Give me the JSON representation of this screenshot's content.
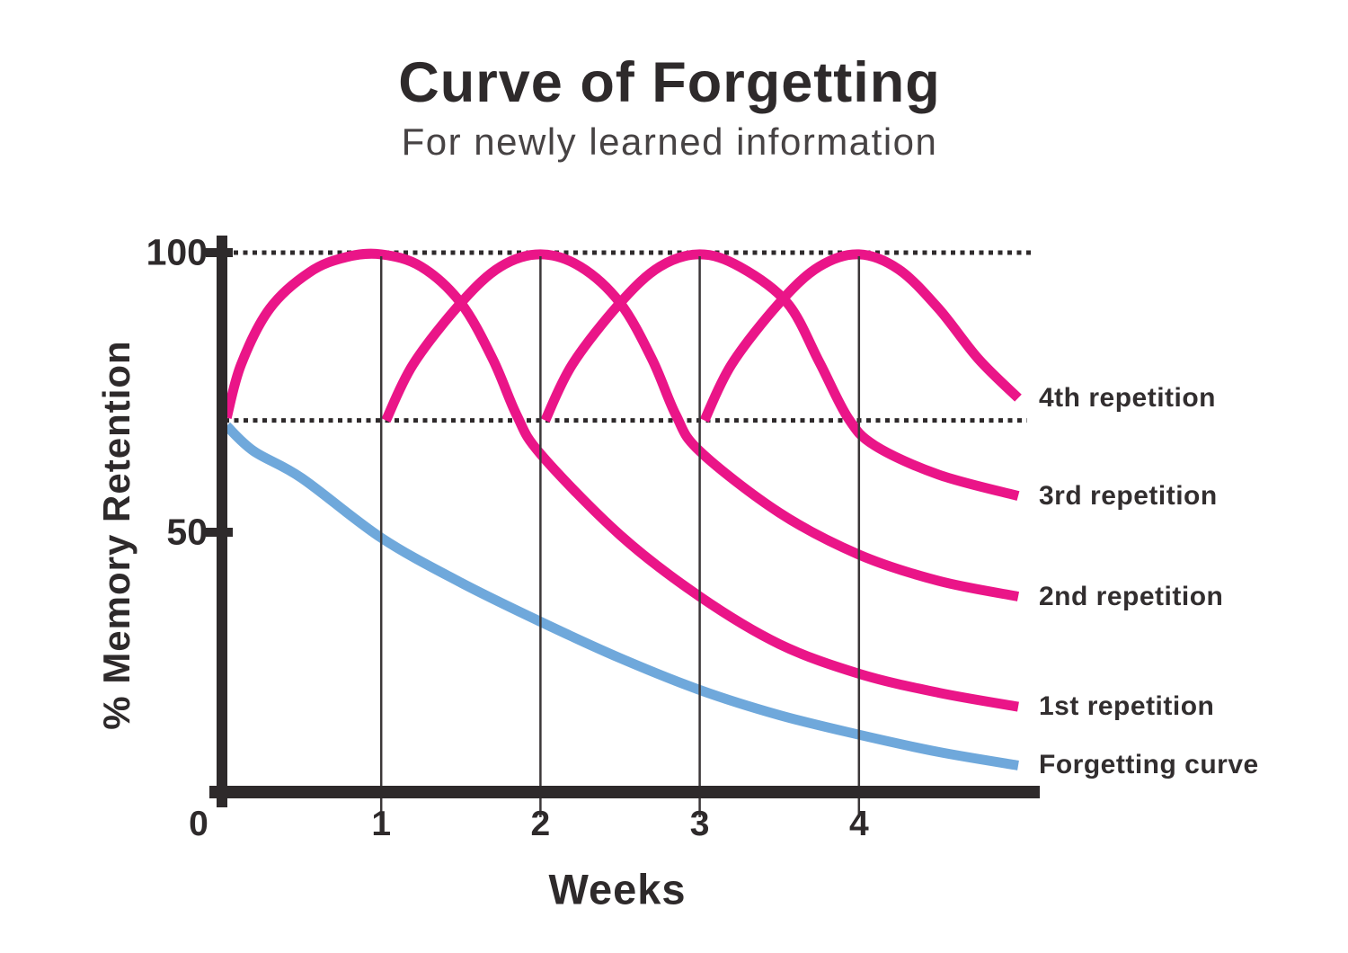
{
  "title": "Curve of Forgetting",
  "subtitle": "For newly learned information",
  "colors": {
    "accent_pink": "#ea1588",
    "accent_blue": "#6fa8db",
    "axis_dark": "#2e2a2b",
    "gridline": "#3b3738",
    "label_text": "#322e2f"
  },
  "chart_data": {
    "type": "line",
    "title": "Curve of Forgetting",
    "subtitle": "For newly learned information",
    "xlabel": "Weeks",
    "ylabel": "% Memory Retention",
    "xlim": [
      0,
      5
    ],
    "ylim": [
      0,
      100
    ],
    "x_ticks": [
      0,
      1,
      2,
      3,
      4
    ],
    "y_ticks": [
      100,
      50
    ],
    "grid": "vertical-at-week-marks",
    "dotted_reference_lines_pct": [
      100,
      70
    ],
    "legend_position": "right-of-curve-ends",
    "series": [
      {
        "name": "Forgetting curve",
        "color": "#6fa8db",
        "end_value_pct": 8.3,
        "points": [
          [
            0.03,
            69
          ],
          [
            0.2,
            64.5
          ],
          [
            0.5,
            59.7
          ],
          [
            1,
            49
          ],
          [
            1.5,
            41
          ],
          [
            2,
            34
          ],
          [
            2.5,
            27.5
          ],
          [
            3,
            21.8
          ],
          [
            3.5,
            17.3
          ],
          [
            4,
            13.8
          ],
          [
            4.5,
            10.7
          ],
          [
            5,
            8.3
          ]
        ]
      },
      {
        "name": "1st repetition",
        "color": "#ea1588",
        "end_value_pct": 18.8,
        "points": [
          [
            0.03,
            70.5
          ],
          [
            0.12,
            80
          ],
          [
            0.3,
            90
          ],
          [
            0.55,
            96.5
          ],
          [
            0.78,
            99.2
          ],
          [
            1,
            99.7
          ],
          [
            1.25,
            97.5
          ],
          [
            1.5,
            91
          ],
          [
            1.7,
            81
          ],
          [
            1.85,
            71
          ],
          [
            2,
            64
          ],
          [
            2.5,
            49.5
          ],
          [
            3,
            38.5
          ],
          [
            3.5,
            30
          ],
          [
            4,
            24.7
          ],
          [
            4.5,
            21.3
          ],
          [
            5,
            18.8
          ]
        ]
      },
      {
        "name": "2nd repetition",
        "color": "#ea1588",
        "end_value_pct": 38.5,
        "points": [
          [
            1.03,
            70
          ],
          [
            1.2,
            80
          ],
          [
            1.5,
            91
          ],
          [
            1.75,
            97.5
          ],
          [
            2,
            99.7
          ],
          [
            2.25,
            97.5
          ],
          [
            2.5,
            91
          ],
          [
            2.7,
            81
          ],
          [
            2.85,
            71
          ],
          [
            3,
            64.5
          ],
          [
            3.5,
            53.5
          ],
          [
            4,
            46
          ],
          [
            4.5,
            41.3
          ],
          [
            5,
            38.5
          ]
        ]
      },
      {
        "name": "3rd repetition",
        "color": "#ea1588",
        "end_value_pct": 56.5,
        "points": [
          [
            2.03,
            70
          ],
          [
            2.2,
            80
          ],
          [
            2.5,
            91
          ],
          [
            2.75,
            97.5
          ],
          [
            3,
            99.7
          ],
          [
            3.25,
            97.5
          ],
          [
            3.55,
            91
          ],
          [
            3.75,
            80.5
          ],
          [
            3.93,
            70.5
          ],
          [
            4.1,
            65.5
          ],
          [
            4.5,
            60.3
          ],
          [
            5,
            56.5
          ]
        ]
      },
      {
        "name": "4th repetition",
        "color": "#ea1588",
        "end_value_pct": 74,
        "points": [
          [
            3.03,
            70
          ],
          [
            3.2,
            80
          ],
          [
            3.5,
            91
          ],
          [
            3.75,
            97.5
          ],
          [
            4,
            99.7
          ],
          [
            4.25,
            97
          ],
          [
            4.5,
            90
          ],
          [
            4.75,
            81
          ],
          [
            5,
            74
          ]
        ]
      }
    ],
    "curve_labels_top_to_bottom": [
      "4th repetition",
      "3rd repetition",
      "2nd repetition",
      "1st repetition",
      "Forgetting curve"
    ]
  }
}
